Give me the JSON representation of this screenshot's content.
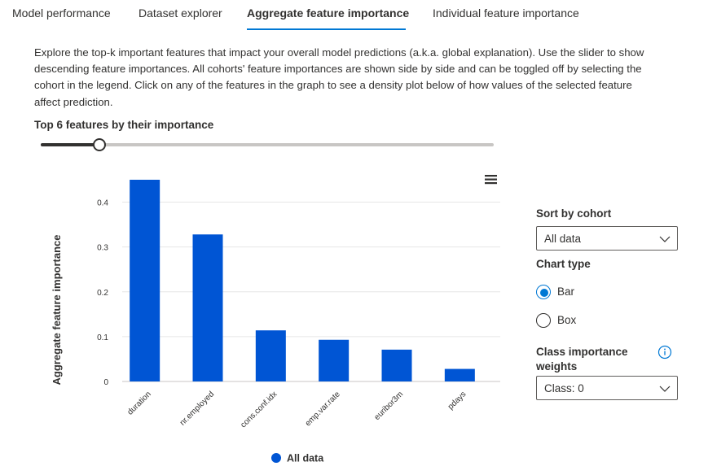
{
  "tabs": [
    {
      "label": "Model performance",
      "active": false
    },
    {
      "label": "Dataset explorer",
      "active": false
    },
    {
      "label": "Aggregate feature importance",
      "active": true
    },
    {
      "label": "Individual feature importance",
      "active": false
    }
  ],
  "description": "Explore the top-k important features that impact your overall model predictions (a.k.a. global explanation). Use the slider to show descending feature importances. All cohorts' feature importances are shown side by side and can be toggled off by selecting the cohort in the legend. Click on any of the features in the graph to see a density plot below of how values of the selected feature affect prediction.",
  "topk": {
    "label": "Top 6 features by their importance",
    "value": 6,
    "fraction": 0.13
  },
  "chart_data": {
    "type": "bar",
    "categories": [
      "duration",
      "nr.employed",
      "cons.conf.idx",
      "emp.var.rate",
      "euribor3m",
      "pdays"
    ],
    "series": [
      {
        "name": "All data",
        "values": [
          0.45,
          0.328,
          0.114,
          0.093,
          0.071,
          0.028
        ]
      }
    ],
    "ylabel": "Aggregate feature importance",
    "xlabel": "",
    "ylim": [
      0,
      0.45
    ],
    "yticks": [
      0,
      0.1,
      0.2,
      0.3,
      0.4
    ],
    "ytick_labels": [
      "0",
      "0.1",
      "0.2",
      "0.3",
      "0.4"
    ],
    "grid": true,
    "legend": "bottom-center",
    "color": "#0055d4"
  },
  "menu_icon": "hamburger-menu-icon",
  "panel": {
    "sort_label": "Sort by cohort",
    "sort_value": "All data",
    "chart_type_label": "Chart type",
    "chart_type_options": [
      "Bar",
      "Box"
    ],
    "chart_type_selected": "Bar",
    "class_weights_label_line1": "Class importance",
    "class_weights_label_line2": "weights",
    "class_value": "Class: 0",
    "info_icon": "info-icon",
    "chevron_icon": "chevron-down-icon"
  },
  "colors": {
    "accent": "#0078d4",
    "bar": "#0055d4",
    "text": "#323130"
  }
}
